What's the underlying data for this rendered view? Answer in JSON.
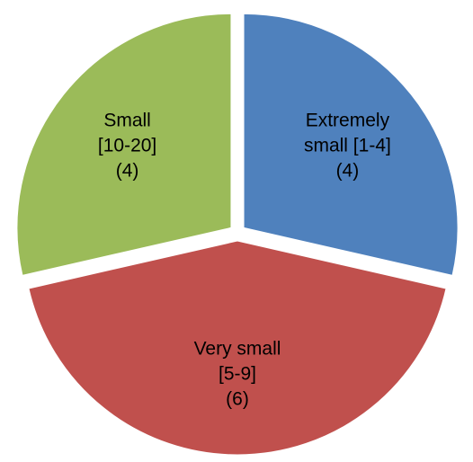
{
  "chart_data": {
    "type": "pie",
    "title": "",
    "legend": "none",
    "start_angle_deg": 90,
    "direction": "clockwise",
    "slices": [
      {
        "name": "Extremely small [1-4]",
        "value": 4,
        "label_lines": [
          "Extremely",
          "small [1-4]",
          "(4)"
        ],
        "color": "#4F81BD"
      },
      {
        "name": "Very small [5-9]",
        "value": 6,
        "label_lines": [
          "Very small",
          "[5-9]",
          "(6)"
        ],
        "color": "#C0504D"
      },
      {
        "name": "Small [10-20]",
        "value": 4,
        "label_lines": [
          "Small",
          "[10-20]",
          "(4)"
        ],
        "color": "#9BBB59"
      }
    ]
  }
}
